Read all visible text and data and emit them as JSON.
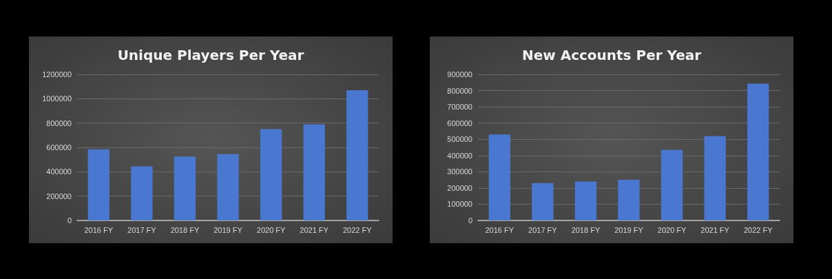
{
  "chart_data": [
    {
      "type": "bar",
      "title": "Unique Players Per Year",
      "categories": [
        "2016 FY",
        "2017 FY",
        "2018 FY",
        "2019 FY",
        "2020 FY",
        "2021 FY",
        "2022 FY"
      ],
      "values": [
        585000,
        445000,
        525000,
        545000,
        750000,
        790000,
        1070000
      ],
      "color": "#4a78d0",
      "ylim": [
        0,
        1200000
      ],
      "yticks": [
        0,
        200000,
        400000,
        600000,
        800000,
        1000000,
        1200000
      ],
      "grid": "y"
    },
    {
      "type": "bar",
      "title": "New Accounts Per Year",
      "categories": [
        "2016 FY",
        "2017 FY",
        "2018 FY",
        "2019 FY",
        "2020 FY",
        "2021 FY",
        "2022 FY"
      ],
      "values": [
        530000,
        230000,
        240000,
        250000,
        435000,
        520000,
        843000
      ],
      "color": "#4a78d0",
      "ylim": [
        0,
        900000
      ],
      "yticks": [
        0,
        100000,
        200000,
        300000,
        400000,
        500000,
        600000,
        700000,
        800000,
        900000
      ],
      "grid": "y"
    }
  ]
}
